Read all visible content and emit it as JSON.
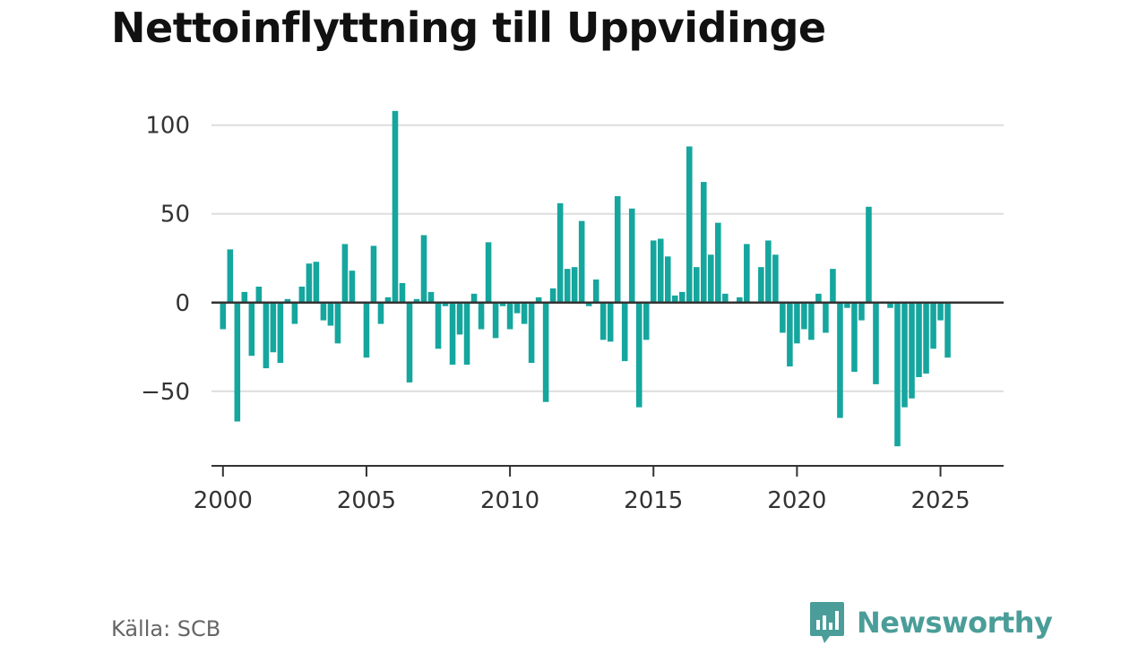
{
  "title": "Nettoinflyttning till Uppvidinge",
  "source": "Källa: SCB",
  "brand": {
    "name": "Newsworthy",
    "icon": "newsworthy-logo-icon",
    "color": "#4a9d98"
  },
  "colors": {
    "bar": "#15a69e",
    "zero_line": "#333333",
    "grid": "#dddddd"
  },
  "chart_data": {
    "type": "bar",
    "title": "Nettoinflyttning till Uppvidinge",
    "xlabel": "",
    "ylabel": "",
    "ylim": [
      -92,
      115
    ],
    "xlim": [
      1999.6,
      2027.2
    ],
    "yticks": [
      100,
      50,
      0,
      -50
    ],
    "ytick_labels": [
      "100",
      "50",
      "0",
      "−50"
    ],
    "xticks": [
      2000,
      2005,
      2010,
      2015,
      2020,
      2025
    ],
    "xtick_labels": [
      "2000",
      "2005",
      "2010",
      "2015",
      "2020",
      "2025"
    ],
    "grid": true,
    "legend": "none",
    "period": "quarterly",
    "x": [
      "2000Q1",
      "2000Q2",
      "2000Q3",
      "2000Q4",
      "2001Q1",
      "2001Q2",
      "2001Q3",
      "2001Q4",
      "2002Q1",
      "2002Q2",
      "2002Q3",
      "2002Q4",
      "2003Q1",
      "2003Q2",
      "2003Q3",
      "2003Q4",
      "2004Q1",
      "2004Q2",
      "2004Q3",
      "2004Q4",
      "2005Q1",
      "2005Q2",
      "2005Q3",
      "2005Q4",
      "2006Q1",
      "2006Q2",
      "2006Q3",
      "2006Q4",
      "2007Q1",
      "2007Q2",
      "2007Q3",
      "2007Q4",
      "2008Q1",
      "2008Q2",
      "2008Q3",
      "2008Q4",
      "2009Q1",
      "2009Q2",
      "2009Q3",
      "2009Q4",
      "2010Q1",
      "2010Q2",
      "2010Q3",
      "2010Q4",
      "2011Q1",
      "2011Q2",
      "2011Q3",
      "2011Q4",
      "2012Q1",
      "2012Q2",
      "2012Q3",
      "2012Q4",
      "2013Q1",
      "2013Q2",
      "2013Q3",
      "2013Q4",
      "2014Q1",
      "2014Q2",
      "2014Q3",
      "2014Q4",
      "2015Q1",
      "2015Q2",
      "2015Q3",
      "2015Q4",
      "2016Q1",
      "2016Q2",
      "2016Q3",
      "2016Q4",
      "2017Q1",
      "2017Q2",
      "2017Q3",
      "2017Q4",
      "2018Q1",
      "2018Q2",
      "2018Q3",
      "2018Q4",
      "2019Q1",
      "2019Q2",
      "2019Q3",
      "2019Q4",
      "2020Q1",
      "2020Q2",
      "2020Q3",
      "2020Q4",
      "2021Q1",
      "2021Q2",
      "2021Q3",
      "2021Q4",
      "2022Q1",
      "2022Q2",
      "2022Q3",
      "2022Q4",
      "2023Q1",
      "2023Q2",
      "2023Q3",
      "2023Q4",
      "2024Q1",
      "2024Q2",
      "2024Q3",
      "2024Q4",
      "2025Q1",
      "2025Q2"
    ],
    "values": [
      -15,
      30,
      -67,
      6,
      -30,
      9,
      -37,
      -28,
      -34,
      2,
      -12,
      9,
      22,
      23,
      -10,
      -13,
      -23,
      33,
      18,
      0,
      -31,
      32,
      -12,
      3,
      108,
      11,
      -45,
      2,
      38,
      6,
      -26,
      -2,
      -35,
      -18,
      -35,
      5,
      -15,
      34,
      -20,
      -2,
      -15,
      -6,
      -12,
      -34,
      3,
      -56,
      8,
      56,
      19,
      20,
      46,
      -2,
      13,
      -21,
      -22,
      60,
      -33,
      53,
      -59,
      -21,
      35,
      36,
      26,
      4,
      6,
      88,
      20,
      68,
      27,
      45,
      5,
      0,
      3,
      33,
      0,
      20,
      35,
      27,
      -17,
      -36,
      -23,
      -15,
      -21,
      5,
      -17,
      19,
      -65,
      -3,
      -39,
      -10,
      54,
      -46,
      0,
      -3,
      -81,
      -59,
      -54,
      -42,
      -40,
      -26,
      -10,
      -31
    ]
  }
}
